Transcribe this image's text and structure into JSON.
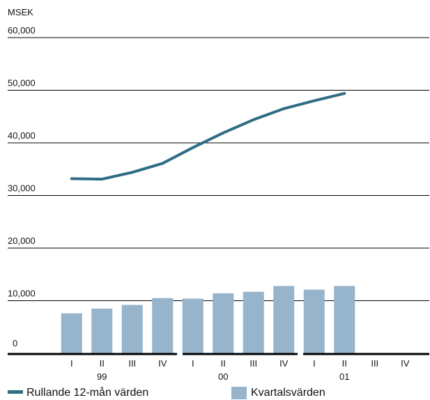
{
  "chart_data": {
    "type": "bar",
    "ylabel": "MSEK",
    "ylim": [
      0,
      60000
    ],
    "y_ticks": [
      "0",
      "10,000",
      "20,000",
      "30,000",
      "40,000",
      "50,000",
      "60,000"
    ],
    "categories": [
      "I",
      "II",
      "III",
      "IV",
      "I",
      "II",
      "III",
      "IV",
      "I",
      "II",
      "III",
      "IV"
    ],
    "year_groups": [
      "99",
      "00",
      "01"
    ],
    "series": [
      {
        "name": "Kvartalsvärden",
        "type": "bar",
        "color": "#96b4cb",
        "values": [
          7600,
          8500,
          9200,
          10500,
          10400,
          11400,
          11700,
          12800,
          12100,
          12800,
          null,
          null
        ]
      },
      {
        "name": "Rullande 12-mån värden",
        "type": "line",
        "color": "#2f6d84",
        "values": [
          33200,
          33100,
          34400,
          36100,
          39100,
          41900,
          44400,
          46500,
          48000,
          49400,
          null,
          null
        ]
      }
    ],
    "grid": true,
    "legend": "bottom"
  }
}
